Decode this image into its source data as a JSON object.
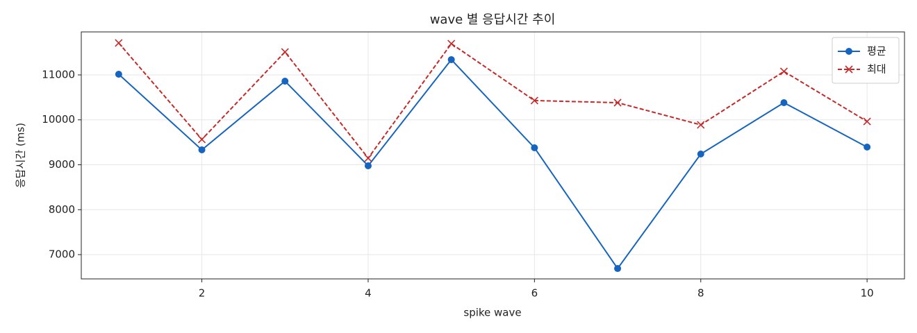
{
  "chart_data": {
    "type": "line",
    "title": "wave 별 응답시간 추이",
    "xlabel": "spike wave",
    "ylabel": "응답시간 (ms)",
    "x": [
      1,
      2,
      3,
      4,
      5,
      6,
      7,
      8,
      9,
      10
    ],
    "series": [
      {
        "name": "평균",
        "color": "#1565c0",
        "marker": "circle",
        "dash": "solid",
        "values": [
          11015,
          9332,
          10861,
          8977,
          11340,
          9378,
          6691,
          9239,
          10382,
          9394
        ]
      },
      {
        "name": "최대",
        "color": "#c62828",
        "marker": "x",
        "dash": "dashed",
        "values": [
          11710,
          9564,
          11510,
          9147,
          11695,
          10429,
          10382,
          9888,
          11077,
          9965
        ]
      }
    ],
    "xlim": [
      0.55,
      10.45
    ],
    "xticks": [
      2,
      4,
      6,
      8,
      10
    ],
    "ylim": [
      6460,
      11957
    ],
    "yticks": [
      7000,
      8000,
      9000,
      10000,
      11000
    ],
    "grid": true,
    "legend": "upper right"
  }
}
